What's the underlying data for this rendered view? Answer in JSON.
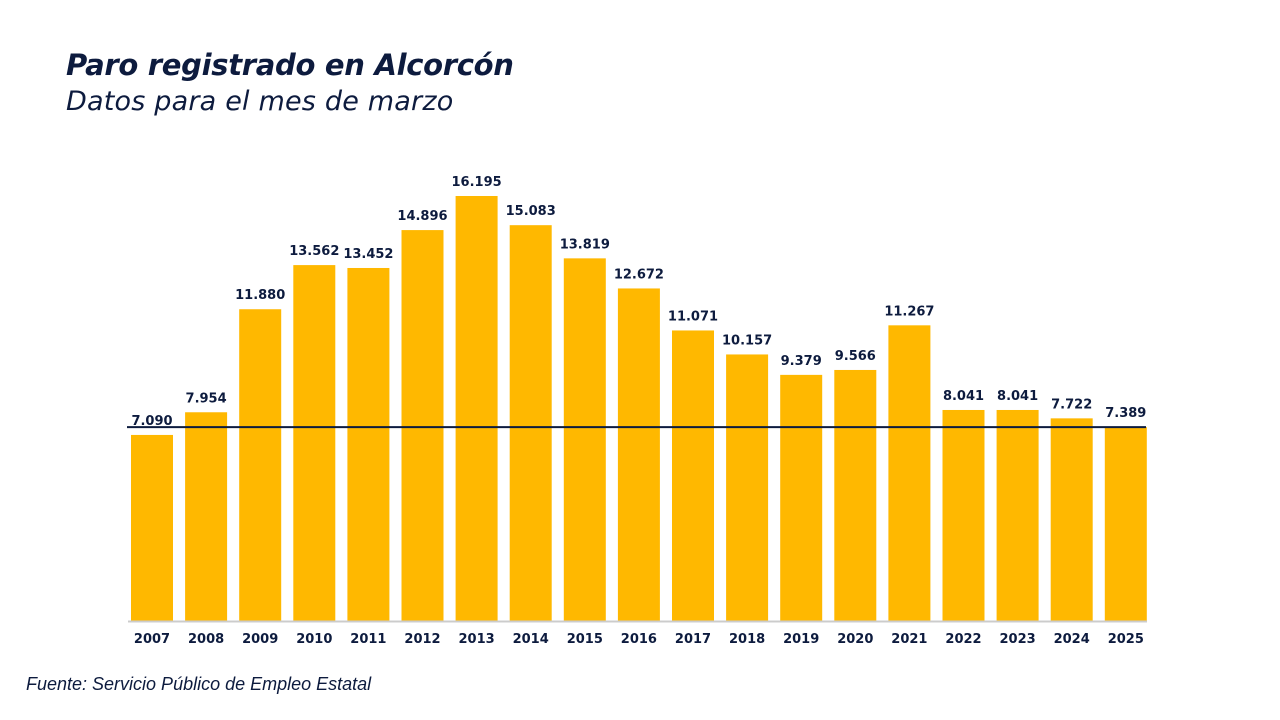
{
  "chart_data": {
    "type": "bar",
    "title": "Paro registrado en Alcorcón",
    "subtitle": "Datos para el mes de marzo",
    "source": "Fuente: Servicio Público de Empleo Estatal",
    "categories": [
      "2007",
      "2008",
      "2009",
      "2010",
      "2011",
      "2012",
      "2013",
      "2014",
      "2015",
      "2016",
      "2017",
      "2018",
      "2019",
      "2020",
      "2021",
      "2022",
      "2023",
      "2024",
      "2025"
    ],
    "values": [
      7090,
      7954,
      11880,
      13562,
      13452,
      14896,
      16195,
      15083,
      13819,
      12672,
      11071,
      10157,
      9379,
      9566,
      11267,
      8041,
      8041,
      7722,
      7389
    ],
    "data_labels": [
      "7.090",
      "7.954",
      "11.880",
      "13.562",
      "13.452",
      "14.896",
      "16.195",
      "15.083",
      "13.819",
      "12.672",
      "11.071",
      "10.157",
      "9.379",
      "9.566",
      "11.267",
      "8.041",
      "8.041",
      "7.722",
      "7.389"
    ],
    "reference_line": 7389,
    "ylim": [
      0,
      16195
    ],
    "grid": false,
    "legend": "none",
    "colors": {
      "bar": "#FFB800",
      "text": "#0d1b3e",
      "reference_line": "#0d1b3e",
      "baseline": "#cccccc"
    }
  }
}
